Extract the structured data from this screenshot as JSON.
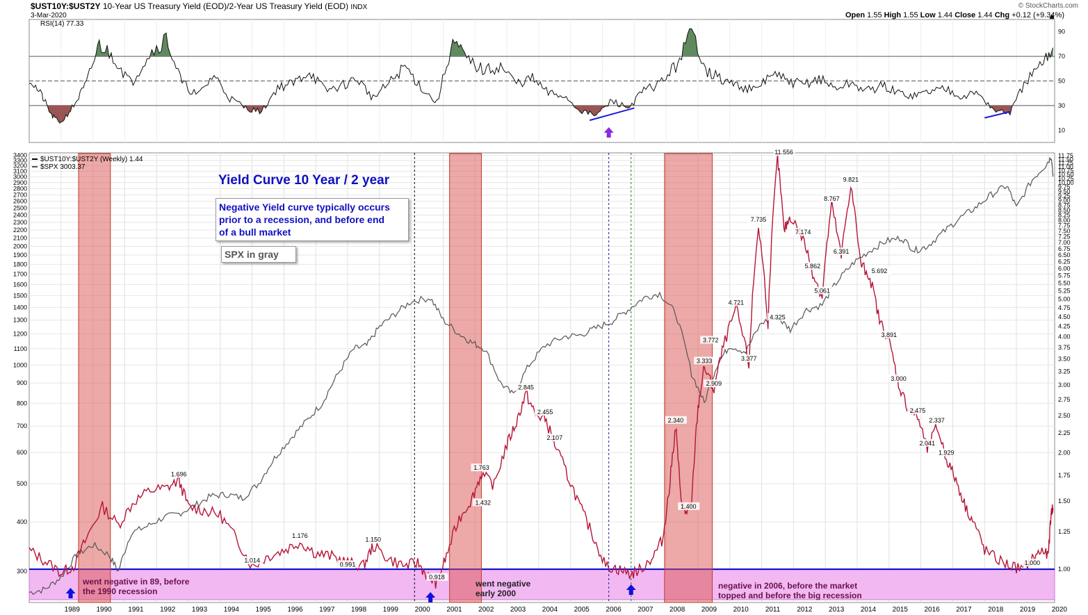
{
  "header": {
    "symbol": "$UST10Y:$UST2Y",
    "description": "10-Year US Treasury Yield (EOD)/2-Year US Treasury Yield (EOD)",
    "exchange": "INDX",
    "date": "3-Mar-2020",
    "copyright": "© StockCharts.com",
    "ohlc": {
      "open_label": "Open",
      "open": "1.55",
      "high_label": "High",
      "high": "1.55",
      "low_label": "Low",
      "low": "1.44",
      "close_label": "Close",
      "close": "1.44",
      "chg_label": "Chg",
      "chg": "+0.12 (+9.34%)"
    }
  },
  "rsi_panel": {
    "label": "RSI(14) 77.33",
    "levels": [
      70,
      50,
      30
    ],
    "ticks": [
      90,
      70,
      50,
      30,
      10
    ],
    "overbought_color": "#5f8a5f",
    "oversold_color": "#9a5555",
    "line_color": "#111111",
    "trendline_color": "#1b1bd8",
    "arrow_color": "#8a2be2"
  },
  "price_panel": {
    "legend": [
      "$UST10Y:$UST2Y (Weekly) 1.44",
      "$SPX 3003.37"
    ],
    "left_ticks": [
      3400,
      3300,
      3200,
      3100,
      3000,
      2900,
      2800,
      2700,
      2600,
      2500,
      2400,
      2300,
      2200,
      2100,
      2000,
      1900,
      1800,
      1700,
      1600,
      1500,
      1400,
      1300,
      1200,
      1100,
      1000,
      900,
      800,
      700,
      600,
      500,
      400,
      300
    ],
    "right_ticks": [
      "11.75",
      "11.50",
      "11.25",
      "11.00",
      "10.75",
      "10.50",
      "10.25",
      "10.00",
      "9.75",
      "9.50",
      "9.25",
      "9.00",
      "8.75",
      "8.50",
      "8.25",
      "8.00",
      "7.75",
      "7.50",
      "7.25",
      "7.00",
      "6.75",
      "6.50",
      "6.25",
      "6.00",
      "5.75",
      "5.50",
      "5.25",
      "5.00",
      "4.75",
      "4.50",
      "4.25",
      "4.00",
      "3.75",
      "3.50",
      "3.25",
      "3.00",
      "2.75",
      "2.50",
      "2.25",
      "2.00",
      "1.75",
      "1.50",
      "1.25",
      "1.00"
    ],
    "years": [
      "1989",
      "1990",
      "1991",
      "1992",
      "1993",
      "1994",
      "1995",
      "1996",
      "1997",
      "1998",
      "1999",
      "2000",
      "2001",
      "2002",
      "2003",
      "2004",
      "2005",
      "2006",
      "2007",
      "2008",
      "2009",
      "2010",
      "2011",
      "2012",
      "2013",
      "2014",
      "2015",
      "2016",
      "2017",
      "2018",
      "2019",
      "2020"
    ],
    "ratio_color": "#b51436",
    "spx_color": "#555555",
    "recession_color": "#d9534f",
    "negative_band_color": "#f2b8f2",
    "zero_line_color": "#0000cc",
    "arrow_color": "#1010e0"
  },
  "annotations": {
    "title": "Yield Curve 10 Year / 2 year",
    "box_text": [
      "Negative Yield curve typically occurs",
      "prior to a recession, and before end",
      "of a bull market"
    ],
    "spx_note": "SPX in gray",
    "note_89": [
      "went negative in 89, before",
      "the 1990 recession"
    ],
    "note_2000": [
      "went negative",
      "early 2000"
    ],
    "note_2006": [
      "negative in 2006, before the market",
      "topped and before the big recession"
    ],
    "text_color": "#1010c0"
  },
  "chart_data": [
    {
      "type": "line",
      "title": "RSI(14) 77.33",
      "ylim": [
        0,
        100
      ],
      "x": [
        1988.0,
        1988.4,
        1988.7,
        1989.0,
        1989.4,
        1989.8,
        1990.2,
        1990.7,
        1991.2,
        1991.7,
        1992.3,
        1992.8,
        1993.3,
        1993.8,
        1994.3,
        1994.8,
        1995.3,
        1995.8,
        1996.3,
        1996.8,
        1997.3,
        1997.8,
        1998.3,
        1998.8,
        1999.3,
        1999.8,
        2000.3,
        2000.8,
        2001.3,
        2001.8,
        2002.3,
        2002.8,
        2003.3,
        2003.8,
        2004.3,
        2004.8,
        2005.3,
        2005.8,
        2006.3,
        2006.8,
        2007.3,
        2007.8,
        2008.3,
        2008.8,
        2009.3,
        2009.8,
        2010.3,
        2010.8,
        2011.3,
        2011.8,
        2012.3,
        2012.8,
        2013.3,
        2013.8,
        2014.3,
        2014.8,
        2015.3,
        2015.8,
        2016.3,
        2016.8,
        2017.3,
        2017.8,
        2018.3,
        2018.8,
        2019.3,
        2019.8,
        2020.15
      ],
      "y": [
        52,
        38,
        22,
        16,
        30,
        48,
        80,
        68,
        48,
        70,
        85,
        48,
        38,
        55,
        36,
        28,
        25,
        45,
        48,
        58,
        42,
        46,
        52,
        36,
        48,
        62,
        45,
        32,
        82,
        66,
        58,
        62,
        48,
        52,
        40,
        38,
        26,
        22,
        34,
        28,
        42,
        48,
        62,
        90,
        58,
        50,
        46,
        42,
        56,
        50,
        47,
        52,
        44,
        48,
        42,
        46,
        40,
        38,
        42,
        44,
        38,
        40,
        26,
        24,
        50,
        62,
        77
      ]
    },
    {
      "type": "line",
      "title": "$UST10Y:$UST2Y (Weekly) 1.44",
      "ylim": [
        0.82,
        11.95
      ],
      "x": [
        1988.0,
        1988.5,
        1989.0,
        1989.4,
        1989.8,
        1990.3,
        1990.8,
        1991.3,
        1991.8,
        1992.3,
        1992.7,
        1993.0,
        1993.5,
        1994.0,
        1994.5,
        1995.0,
        1995.5,
        1996.0,
        1996.5,
        1997.0,
        1997.5,
        1998.0,
        1998.5,
        1998.8,
        1999.3,
        1999.8,
        2000.2,
        2000.5,
        2000.8,
        2001.1,
        2001.5,
        2001.9,
        2002.2,
        2002.6,
        2003.0,
        2003.3,
        2003.6,
        2003.9,
        2004.2,
        2004.5,
        2004.9,
        2005.3,
        2005.7,
        2006.1,
        2006.5,
        2006.9,
        2007.2,
        2007.6,
        2007.9,
        2008.1,
        2008.3,
        2008.45,
        2008.6,
        2008.8,
        2009.0,
        2009.2,
        2009.5,
        2009.8,
        2010.2,
        2010.6,
        2010.9,
        2011.2,
        2011.5,
        2011.7,
        2011.9,
        2012.3,
        2012.6,
        2012.9,
        2013.2,
        2013.5,
        2013.8,
        2014.1,
        2014.4,
        2014.7,
        2015.0,
        2015.3,
        2015.6,
        2015.9,
        2016.2,
        2016.5,
        2016.8,
        2017.1,
        2017.4,
        2017.7,
        2018.0,
        2018.4,
        2018.8,
        2019.2,
        2019.5,
        2019.8,
        2020.0,
        2020.1,
        2020.15
      ],
      "y": [
        1.12,
        1.05,
        0.98,
        1.02,
        1.2,
        1.45,
        1.3,
        1.5,
        1.6,
        1.62,
        1.696,
        1.45,
        1.42,
        1.38,
        1.2,
        1.014,
        1.08,
        1.12,
        1.176,
        1.1,
        1.08,
        1.04,
        1.02,
        1.15,
        1.06,
        1.02,
        1.04,
        0.96,
        0.918,
        1.08,
        1.35,
        1.52,
        1.763,
        1.65,
        2.1,
        2.4,
        2.845,
        2.5,
        2.455,
        2.107,
        1.75,
        1.45,
        1.22,
        1.02,
        1.0,
        0.97,
        1.0,
        1.08,
        1.2,
        1.6,
        2.34,
        1.55,
        1.4,
        1.45,
        2.6,
        3.333,
        2.909,
        3.772,
        4.721,
        3.377,
        7.735,
        4.325,
        11.556,
        7.5,
        8.2,
        7.174,
        5.862,
        5.061,
        8.767,
        6.391,
        9.821,
        6.2,
        5.692,
        4.4,
        3.891,
        3.0,
        2.6,
        2.475,
        2.041,
        2.337,
        1.929,
        1.7,
        1.45,
        1.3,
        1.12,
        1.06,
        1.02,
        1.0,
        1.06,
        1.12,
        1.08,
        1.42,
        1.44
      ]
    },
    {
      "type": "line",
      "title": "$SPX 3003.37",
      "ylim": [
        250,
        3450
      ],
      "x": [
        1988.0,
        1988.5,
        1989.0,
        1989.5,
        1990.0,
        1990.5,
        1990.8,
        1991.2,
        1991.7,
        1992.2,
        1992.7,
        1993.2,
        1993.7,
        1994.2,
        1994.7,
        1995.2,
        1995.7,
        1996.2,
        1996.7,
        1997.2,
        1997.7,
        1998.2,
        1998.6,
        1999.0,
        1999.5,
        2000.0,
        2000.6,
        2001.0,
        2001.5,
        2001.9,
        2002.3,
        2002.8,
        2003.2,
        2003.7,
        2004.2,
        2004.8,
        2005.3,
        2005.8,
        2006.3,
        2006.8,
        2007.3,
        2007.8,
        2008.3,
        2008.8,
        2009.2,
        2009.6,
        2010.0,
        2010.5,
        2011.0,
        2011.5,
        2011.9,
        2012.4,
        2012.9,
        2013.4,
        2013.9,
        2014.4,
        2014.9,
        2015.4,
        2015.8,
        2016.2,
        2016.7,
        2017.2,
        2017.7,
        2018.2,
        2018.7,
        2019.0,
        2019.5,
        2019.9,
        2020.1,
        2020.15
      ],
      "y": [
        265,
        270,
        290,
        330,
        350,
        330,
        300,
        375,
        390,
        410,
        420,
        440,
        465,
        470,
        460,
        500,
        580,
        650,
        720,
        800,
        950,
        1100,
        1120,
        1250,
        1350,
        1450,
        1480,
        1300,
        1200,
        1140,
        1100,
        900,
        840,
        1000,
        1120,
        1180,
        1190,
        1240,
        1290,
        1380,
        1480,
        1520,
        1350,
        950,
        800,
        1000,
        1120,
        1080,
        1280,
        1320,
        1230,
        1380,
        1420,
        1640,
        1820,
        1950,
        2060,
        2100,
        1950,
        2000,
        2170,
        2350,
        2500,
        2700,
        2850,
        2500,
        2950,
        3200,
        3380,
        3003
      ]
    }
  ]
}
